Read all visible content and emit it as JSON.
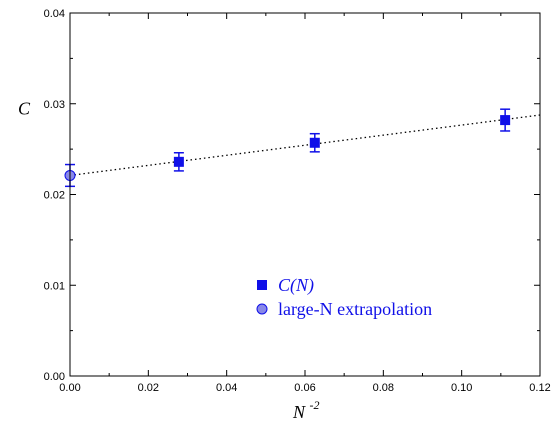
{
  "chart_data": {
    "type": "scatter",
    "xlabel": "N",
    "xlabel_sup": "-2",
    "ylabel": "C",
    "xlim": [
      0,
      0.12
    ],
    "ylim": [
      0,
      0.04
    ],
    "x_ticks": [
      "0.00",
      "0.02",
      "0.04",
      "0.06",
      "0.08",
      "0.10",
      "0.12"
    ],
    "y_ticks": [
      "0.00",
      "0.01",
      "0.02",
      "0.03",
      "0.04"
    ],
    "series": [
      {
        "name": "C(N)",
        "marker": "square",
        "color": "#1010e8",
        "points": [
          {
            "x": 0.0278,
            "y": 0.0236,
            "err": 0.001
          },
          {
            "x": 0.0625,
            "y": 0.0257,
            "err": 0.001
          },
          {
            "x": 0.1111,
            "y": 0.0282,
            "err": 0.0012
          }
        ]
      },
      {
        "name": "large-N extrapolation",
        "marker": "circle",
        "color": "#8888e8",
        "points": [
          {
            "x": 0.0,
            "y": 0.0221,
            "err": 0.0012
          }
        ]
      }
    ],
    "fit_line": {
      "style": "dotted",
      "color": "#000000",
      "intercept": 0.0221,
      "slope": 0.0555,
      "x_range": [
        0,
        0.12
      ]
    },
    "legend_position": "lower-center"
  }
}
